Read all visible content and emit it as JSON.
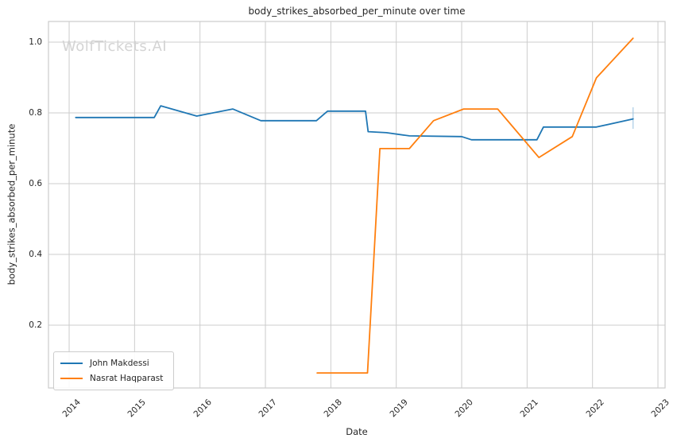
{
  "chart_data": {
    "type": "line",
    "title": "body_strikes_absorbed_per_minute over time",
    "xlabel": "Date",
    "ylabel": "body_strikes_absorbed_per_minute",
    "watermark": "WolfTickets.AI",
    "grid": true,
    "legend_position": "lower left",
    "xlim": [
      2013.684,
      2023.109
    ],
    "ylim": [
      0.0225,
      1.0584
    ],
    "xticks": [
      2014,
      2015,
      2016,
      2017,
      2018,
      2019,
      2020,
      2021,
      2022,
      2023
    ],
    "xticklabels": [
      "2014",
      "2015",
      "2016",
      "2017",
      "2018",
      "2019",
      "2020",
      "2021",
      "2022",
      "2023"
    ],
    "yticks": [
      0.2,
      0.4,
      0.6,
      0.8,
      1.0
    ],
    "yticklabels": [
      "0.2",
      "0.4",
      "0.6",
      "0.8",
      "1.0"
    ],
    "series": [
      {
        "name": "John Makdessi",
        "color": "#1f77b4",
        "x": [
          2014.1,
          2015.3,
          2015.4,
          2015.95,
          2016.5,
          2016.93,
          2017.78,
          2017.95,
          2018.53,
          2018.57,
          2018.85,
          2019.2,
          2020.0,
          2020.15,
          2021.15,
          2021.25,
          2022.06,
          2022.62
        ],
        "y": [
          0.787,
          0.787,
          0.82,
          0.791,
          0.811,
          0.778,
          0.778,
          0.805,
          0.805,
          0.747,
          0.744,
          0.735,
          0.733,
          0.724,
          0.724,
          0.76,
          0.76,
          0.783
        ]
      },
      {
        "name": "Nasrat Haqparast",
        "color": "#ff7f0e",
        "x": [
          2017.79,
          2018.56,
          2018.75,
          2019.2,
          2019.57,
          2020.03,
          2020.55,
          2021.18,
          2021.69,
          2022.06,
          2022.62
        ],
        "y": [
          0.065,
          0.065,
          0.699,
          0.699,
          0.778,
          0.811,
          0.811,
          0.674,
          0.733,
          0.899,
          1.011
        ]
      }
    ],
    "error_bar": {
      "series": "John Makdessi",
      "x": 2022.62,
      "y_low": 0.755,
      "y_high": 0.816,
      "color": "#a8cbe4"
    }
  }
}
